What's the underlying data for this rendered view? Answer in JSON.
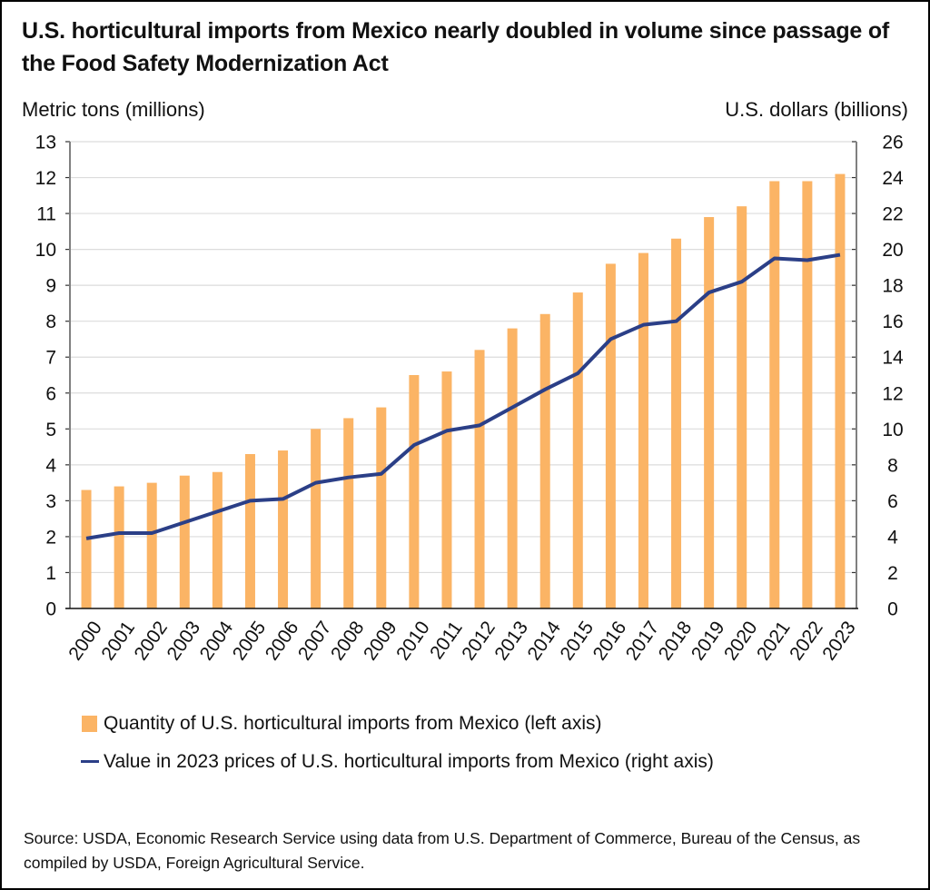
{
  "title": "U.S. horticultural imports from Mexico nearly doubled in volume since passage of the Food Safety Modernization Act",
  "left_axis_title": "Metric tons (millions)",
  "right_axis_title": "U.S. dollars (billions)",
  "legend": {
    "bar": "Quantity of U.S. horticultural imports from Mexico (left axis)",
    "line": "Value in 2023 prices of U.S. horticultural imports from Mexico (right axis)"
  },
  "source": "Source: USDA, Economic Research Service using data from U.S. Department of Commerce, Bureau of the Census, as compiled by USDA, Foreign Agricultural Service.",
  "colors": {
    "bar": "#FBB465",
    "line": "#2B3F87",
    "grid": "#DCDCDC",
    "axis": "#808080"
  },
  "chart_data": {
    "type": "bar+line",
    "title": "U.S. horticultural imports from Mexico nearly doubled in volume since passage of the Food Safety Modernization Act",
    "categories": [
      "2000",
      "2001",
      "2002",
      "2003",
      "2004",
      "2005",
      "2006",
      "2007",
      "2008",
      "2009",
      "2010",
      "2011",
      "2012",
      "2013",
      "2014",
      "2015",
      "2016",
      "2017",
      "2018",
      "2019",
      "2020",
      "2021",
      "2022",
      "2023"
    ],
    "series": [
      {
        "name": "Quantity of U.S. horticultural imports from Mexico (left axis)",
        "type": "bar",
        "axis": "left",
        "values": [
          3.3,
          3.4,
          3.5,
          3.7,
          3.8,
          4.3,
          4.4,
          5.0,
          5.3,
          5.6,
          6.5,
          6.6,
          7.2,
          7.8,
          8.2,
          8.8,
          9.6,
          9.9,
          10.3,
          10.9,
          11.2,
          11.9,
          11.9,
          12.1
        ]
      },
      {
        "name": "Value in 2023 prices of U.S. horticultural imports from Mexico (right axis)",
        "type": "line",
        "axis": "right",
        "values": [
          3.9,
          4.2,
          4.2,
          4.8,
          5.4,
          6.0,
          6.1,
          7.0,
          7.3,
          7.5,
          9.1,
          9.9,
          10.2,
          11.2,
          12.2,
          13.1,
          15.0,
          15.8,
          16.0,
          17.6,
          18.2,
          19.5,
          19.4,
          19.7
        ]
      }
    ],
    "ylabel": "Metric tons (millions)",
    "ylabel_right": "U.S. dollars (billions)",
    "ylim": [
      0,
      13
    ],
    "ylim_right": [
      0,
      26
    ],
    "yticks": [
      0,
      1,
      2,
      3,
      4,
      5,
      6,
      7,
      8,
      9,
      10,
      11,
      12,
      13
    ],
    "yticks_right": [
      0,
      2,
      4,
      6,
      8,
      10,
      12,
      14,
      16,
      18,
      20,
      22,
      24,
      26
    ],
    "grid": true,
    "legend_position": "bottom"
  }
}
